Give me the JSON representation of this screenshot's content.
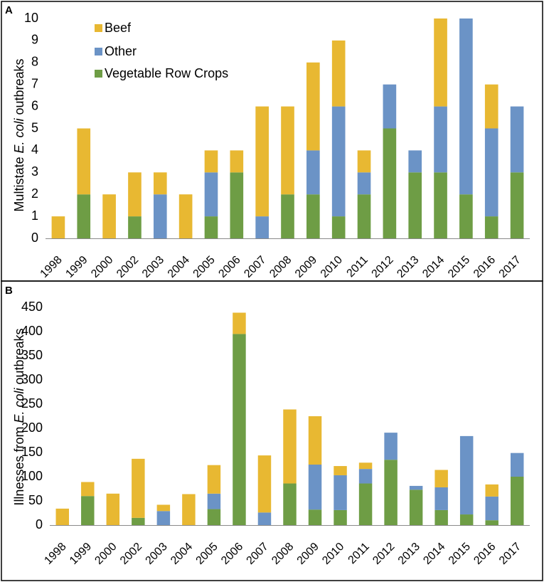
{
  "colors": {
    "beef": "#E8B832",
    "other": "#6B93C6",
    "veg": "#6E9D45"
  },
  "chart_data": [
    {
      "panel_label": "A",
      "type": "bar",
      "stacked": true,
      "ylabel_prefix": "Multistate ",
      "ylabel_italic": "E. coli",
      "ylabel_suffix": " outbreaks",
      "ylim": [
        0,
        10
      ],
      "yticks": [
        "0",
        "1",
        "2",
        "3",
        "4",
        "5",
        "6",
        "7",
        "8",
        "9",
        "10"
      ],
      "categories": [
        "1998",
        "1999",
        "2000",
        "2002",
        "2003",
        "2004",
        "2005",
        "2006",
        "2007",
        "2008",
        "2009",
        "2010",
        "2011",
        "2012",
        "2013",
        "2014",
        "2015",
        "2016",
        "2017"
      ],
      "legend": [
        "Beef",
        "Other",
        "Vegetable Row Crops"
      ],
      "series": [
        {
          "name": "Vegetable Row Crops",
          "key": "veg",
          "values": [
            0,
            2,
            0,
            1,
            0,
            0,
            1,
            3,
            0,
            2,
            2,
            1,
            2,
            5,
            3,
            3,
            2,
            1,
            3
          ]
        },
        {
          "name": "Other",
          "key": "other",
          "values": [
            0,
            0,
            0,
            0,
            2,
            0,
            2,
            0,
            1,
            0,
            2,
            5,
            1,
            2,
            1,
            3,
            8,
            4,
            3
          ]
        },
        {
          "name": "Beef",
          "key": "beef",
          "values": [
            1,
            3,
            2,
            2,
            1,
            2,
            1,
            1,
            5,
            4,
            4,
            3,
            1,
            0,
            0,
            4,
            0,
            2,
            0
          ]
        }
      ]
    },
    {
      "panel_label": "B",
      "type": "bar",
      "stacked": true,
      "ylabel_prefix": "Illnesses from ",
      "ylabel_italic": "E. coli",
      "ylabel_suffix": " outbreaks",
      "ylim": [
        0,
        450
      ],
      "yticks": [
        "0",
        "50",
        "100",
        "150",
        "200",
        "250",
        "300",
        "350",
        "400",
        "450"
      ],
      "categories": [
        "1998",
        "1999",
        "2000",
        "2002",
        "2003",
        "2004",
        "2005",
        "2006",
        "2007",
        "2008",
        "2009",
        "2010",
        "2011",
        "2012",
        "2013",
        "2014",
        "2015",
        "2016",
        "2017"
      ],
      "series": [
        {
          "name": "Vegetable Row Crops",
          "key": "veg",
          "values": [
            0,
            60,
            0,
            15,
            0,
            0,
            33,
            395,
            0,
            86,
            32,
            31,
            86,
            135,
            73,
            31,
            22,
            10,
            100
          ]
        },
        {
          "name": "Other",
          "key": "other",
          "values": [
            0,
            0,
            0,
            0,
            29,
            0,
            32,
            0,
            26,
            0,
            93,
            72,
            30,
            56,
            8,
            47,
            162,
            49,
            49
          ]
        },
        {
          "name": "Beef",
          "key": "beef",
          "values": [
            34,
            29,
            65,
            122,
            13,
            64,
            59,
            44,
            118,
            153,
            100,
            19,
            13,
            0,
            0,
            36,
            0,
            25,
            0
          ]
        }
      ]
    }
  ]
}
